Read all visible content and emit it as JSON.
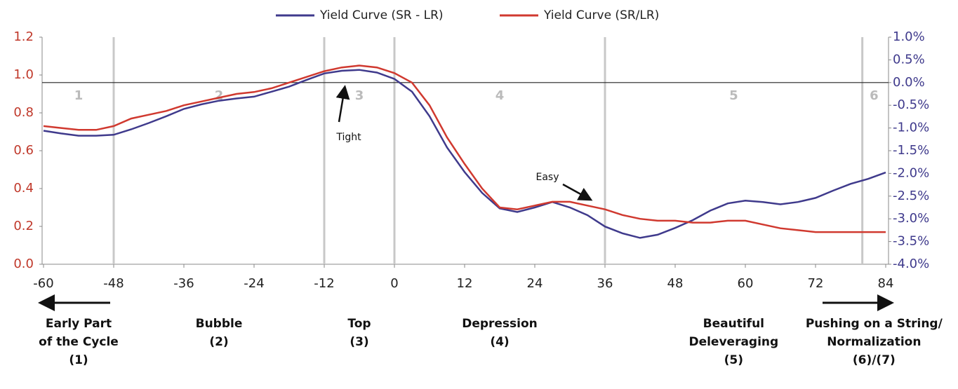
{
  "chart_data": {
    "type": "line",
    "x": [
      -60,
      -57,
      -54,
      -51,
      -48,
      -45,
      -42,
      -39,
      -36,
      -33,
      -30,
      -27,
      -24,
      -21,
      -18,
      -15,
      -12,
      -9,
      -6,
      -3,
      0,
      3,
      6,
      9,
      12,
      15,
      18,
      21,
      24,
      27,
      30,
      33,
      36,
      39,
      42,
      45,
      48,
      51,
      54,
      57,
      60,
      63,
      66,
      69,
      72,
      75,
      78,
      81,
      84
    ],
    "series": [
      {
        "name": "Yield Curve (SR - LR)",
        "color": "#3f3a8c",
        "axis": "y2",
        "values": [
          -1.06,
          -1.12,
          -1.17,
          -1.17,
          -1.15,
          -1.03,
          -0.89,
          -0.74,
          -0.58,
          -0.48,
          -0.4,
          -0.35,
          -0.31,
          -0.2,
          -0.09,
          0.06,
          0.2,
          0.26,
          0.28,
          0.22,
          0.08,
          -0.2,
          -0.74,
          -1.43,
          -1.97,
          -2.43,
          -2.77,
          -2.85,
          -2.75,
          -2.63,
          -2.75,
          -2.92,
          -3.17,
          -3.32,
          -3.42,
          -3.35,
          -3.2,
          -3.03,
          -2.82,
          -2.66,
          -2.6,
          -2.63,
          -2.68,
          -2.63,
          -2.54,
          -2.38,
          -2.23,
          -2.12,
          -1.98
        ]
      },
      {
        "name": "Yield Curve (SR/LR)",
        "color": "#d0392f",
        "values": [
          0.73,
          0.72,
          0.71,
          0.71,
          0.73,
          0.77,
          0.79,
          0.81,
          0.84,
          0.86,
          0.88,
          0.9,
          0.91,
          0.93,
          0.96,
          0.99,
          1.02,
          1.04,
          1.05,
          1.04,
          1.01,
          0.96,
          0.84,
          0.67,
          0.53,
          0.4,
          0.3,
          0.29,
          0.31,
          0.33,
          0.33,
          0.31,
          0.29,
          0.26,
          0.24,
          0.23,
          0.23,
          0.22,
          0.22,
          0.23,
          0.23,
          0.21,
          0.19,
          0.18,
          0.17,
          0.17,
          0.17,
          0.17,
          0.17
        ]
      }
    ],
    "xlim": [
      -60,
      84
    ],
    "xticks": [
      -60,
      -48,
      -36,
      -24,
      -12,
      0,
      12,
      24,
      36,
      48,
      60,
      72,
      84
    ],
    "ylim": [
      0,
      1.2
    ],
    "yticks": [
      {
        "value": 0,
        "label": "0.0"
      },
      0.2,
      0.4,
      0.6,
      0.8,
      {
        "value": 1,
        "label": "1.0"
      },
      1.2
    ],
    "y2lim": [
      -4,
      1
    ],
    "y2ticks": [
      {
        "value": -4,
        "label": "-4.0%"
      },
      {
        "value": -3.5,
        "label": "-3.5%"
      },
      {
        "value": -3,
        "label": "-3.0%"
      },
      {
        "value": -2.5,
        "label": "-2.5%"
      },
      {
        "value": -2,
        "label": "-2.0%"
      },
      {
        "value": -1.5,
        "label": "-1.5%"
      },
      {
        "value": -1,
        "label": "-1.0%"
      },
      {
        "value": -0.5,
        "label": "-0.5%"
      },
      {
        "value": 0,
        "label": "0.0%"
      },
      {
        "value": 0.5,
        "label": "0.5%"
      },
      {
        "value": 1,
        "label": "1.0%"
      }
    ],
    "vlines": [
      -48,
      -12,
      0,
      36,
      80
    ],
    "phase_numbers": [
      "1",
      "2",
      "3",
      "4",
      "5",
      "6"
    ],
    "phase_labels": [
      [
        "Early Part",
        "of the Cycle",
        "(1)"
      ],
      [
        "Bubble",
        "(2)"
      ],
      [
        "Top",
        "(3)"
      ],
      [
        "Depression",
        "(4)"
      ],
      [
        "Beautiful",
        "Deleveraging",
        "(5)"
      ],
      [
        "Pushing on a String/",
        "Normalization",
        "(6)/(7)"
      ]
    ],
    "annotations": [
      "Tight",
      "Easy"
    ]
  }
}
